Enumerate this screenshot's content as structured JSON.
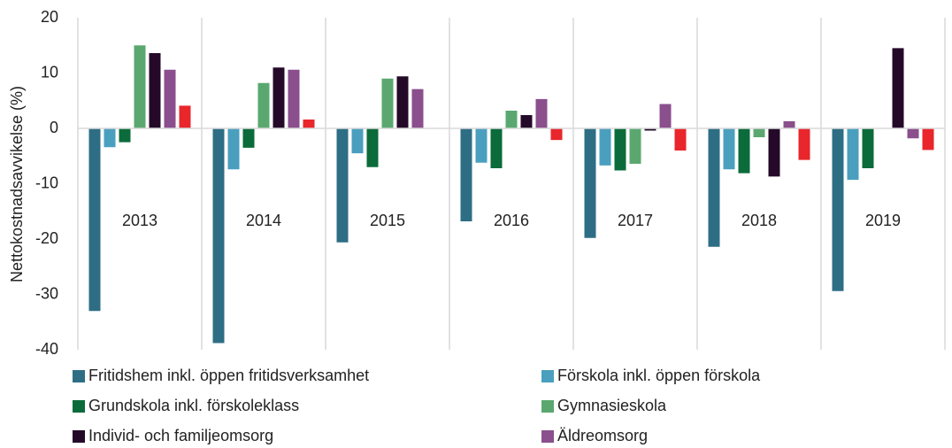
{
  "chart_data": {
    "type": "bar",
    "y_label": "Nettokostnadsavvikelse (%)",
    "categories": [
      "2013",
      "2014",
      "2015",
      "2016",
      "2017",
      "2018",
      "2019"
    ],
    "series": [
      {
        "name": "Fritidshem inkl. öppen fritidsverksamhet",
        "color": "#2e6e85",
        "values": [
          -33,
          -38.8,
          -20.6,
          -16.8,
          -19.8,
          -21.4,
          -29.4
        ]
      },
      {
        "name": "Förskola inkl. öppen förskola",
        "color": "#4a9fbf",
        "values": [
          -3.4,
          -7.4,
          -4.5,
          -6.2,
          -6.7,
          -7.4,
          -9.3
        ]
      },
      {
        "name": "Grundskola inkl. förskoleklass",
        "color": "#0b6b3a",
        "values": [
          -2.5,
          -3.5,
          -7,
          -7.2,
          -7.6,
          -8.1,
          -7.2
        ]
      },
      {
        "name": "Gymnasieskola",
        "color": "#5aa870",
        "values": [
          15,
          8.2,
          9,
          3.2,
          -6.4,
          -1.6,
          0
        ]
      },
      {
        "name": "Individ- och familjeomsorg",
        "color": "#240a28",
        "values": [
          13.6,
          11,
          9.4,
          2.4,
          -0.4,
          -8.7,
          14.5
        ]
      },
      {
        "name": "Äldreomsorg",
        "color": "#8a4f8c",
        "values": [
          10.6,
          10.6,
          7.1,
          5.3,
          4.4,
          1.3,
          -1.8
        ]
      },
      {
        "color": "#e8262b",
        "values": [
          4.1,
          1.6,
          0,
          -2.1,
          -4,
          -5.7,
          -3.9
        ]
      }
    ],
    "ylim": [
      -40,
      20
    ],
    "yticks": [
      -40,
      -30,
      -20,
      -10,
      0,
      10,
      20
    ]
  }
}
